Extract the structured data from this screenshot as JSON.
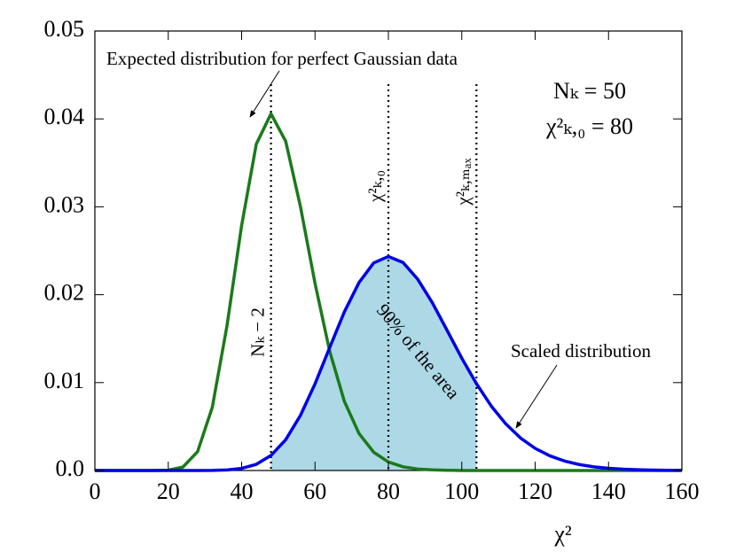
{
  "chart_data": {
    "type": "line",
    "x_label": "χ²",
    "x": [
      0,
      4,
      8,
      12,
      16,
      20,
      24,
      28,
      32,
      36,
      40,
      44,
      48,
      52,
      56,
      60,
      64,
      68,
      72,
      76,
      80,
      84,
      88,
      92,
      96,
      100,
      104,
      108,
      112,
      116,
      120,
      124,
      128,
      132,
      136,
      140,
      144,
      148,
      152,
      156,
      160
    ],
    "series": [
      {
        "name": "Expected distribution for perfect Gaussian data",
        "color": "#1a7a1a",
        "values": [
          0,
          0,
          0,
          0,
          0,
          4e-05,
          0.00039,
          0.00215,
          0.00719,
          0.01644,
          0.02788,
          0.03714,
          0.04058,
          0.03747,
          0.03008,
          0.0213,
          0.01357,
          0.00786,
          0.0042,
          0.00208,
          0.00096,
          0.00042,
          0.00017,
          7e-05,
          3e-05,
          0,
          0,
          0,
          0,
          0,
          0,
          0,
          0,
          0,
          0,
          0,
          0,
          0,
          0,
          0,
          0
        ]
      },
      {
        "name": "Scaled distribution",
        "color": "#0000e6",
        "values": [
          0,
          0,
          0,
          0,
          0,
          0,
          0,
          0,
          1e-05,
          6e-05,
          0.00024,
          0.0007,
          0.00171,
          0.0035,
          0.00625,
          0.00986,
          0.01399,
          0.01805,
          0.02139,
          0.02362,
          0.02435,
          0.02366,
          0.02176,
          0.01907,
          0.01594,
          0.01278,
          0.00988,
          0.00735,
          0.0053,
          0.0037,
          0.00252,
          0.00167,
          0.00108,
          0.00068,
          0.00042,
          0.00025,
          0.00015,
          9e-05,
          5e-05,
          3e-05,
          2e-05
        ]
      }
    ],
    "shaded_region": {
      "x": [
        48,
        104
      ],
      "color": "#add8e6",
      "label": "90% of the area"
    },
    "vlines": [
      {
        "x": 48,
        "label": "Nₖ − 2"
      },
      {
        "x": 80,
        "label": "χ²ₖ,₀"
      },
      {
        "x": 104,
        "label": "χ²ₖ,ₘₐₓ"
      }
    ],
    "annotations": [
      "Nₖ = 50",
      "χ²ₖ,₀ = 80"
    ],
    "xlim": [
      0,
      160
    ],
    "xticks": [
      0,
      20,
      40,
      60,
      80,
      100,
      120,
      140,
      160
    ],
    "ylim": [
      0,
      0.05
    ],
    "yticks": [
      {
        "value": 0,
        "label": "0.0"
      },
      0.01,
      0.02,
      0.03,
      0.04,
      0.05
    ]
  }
}
